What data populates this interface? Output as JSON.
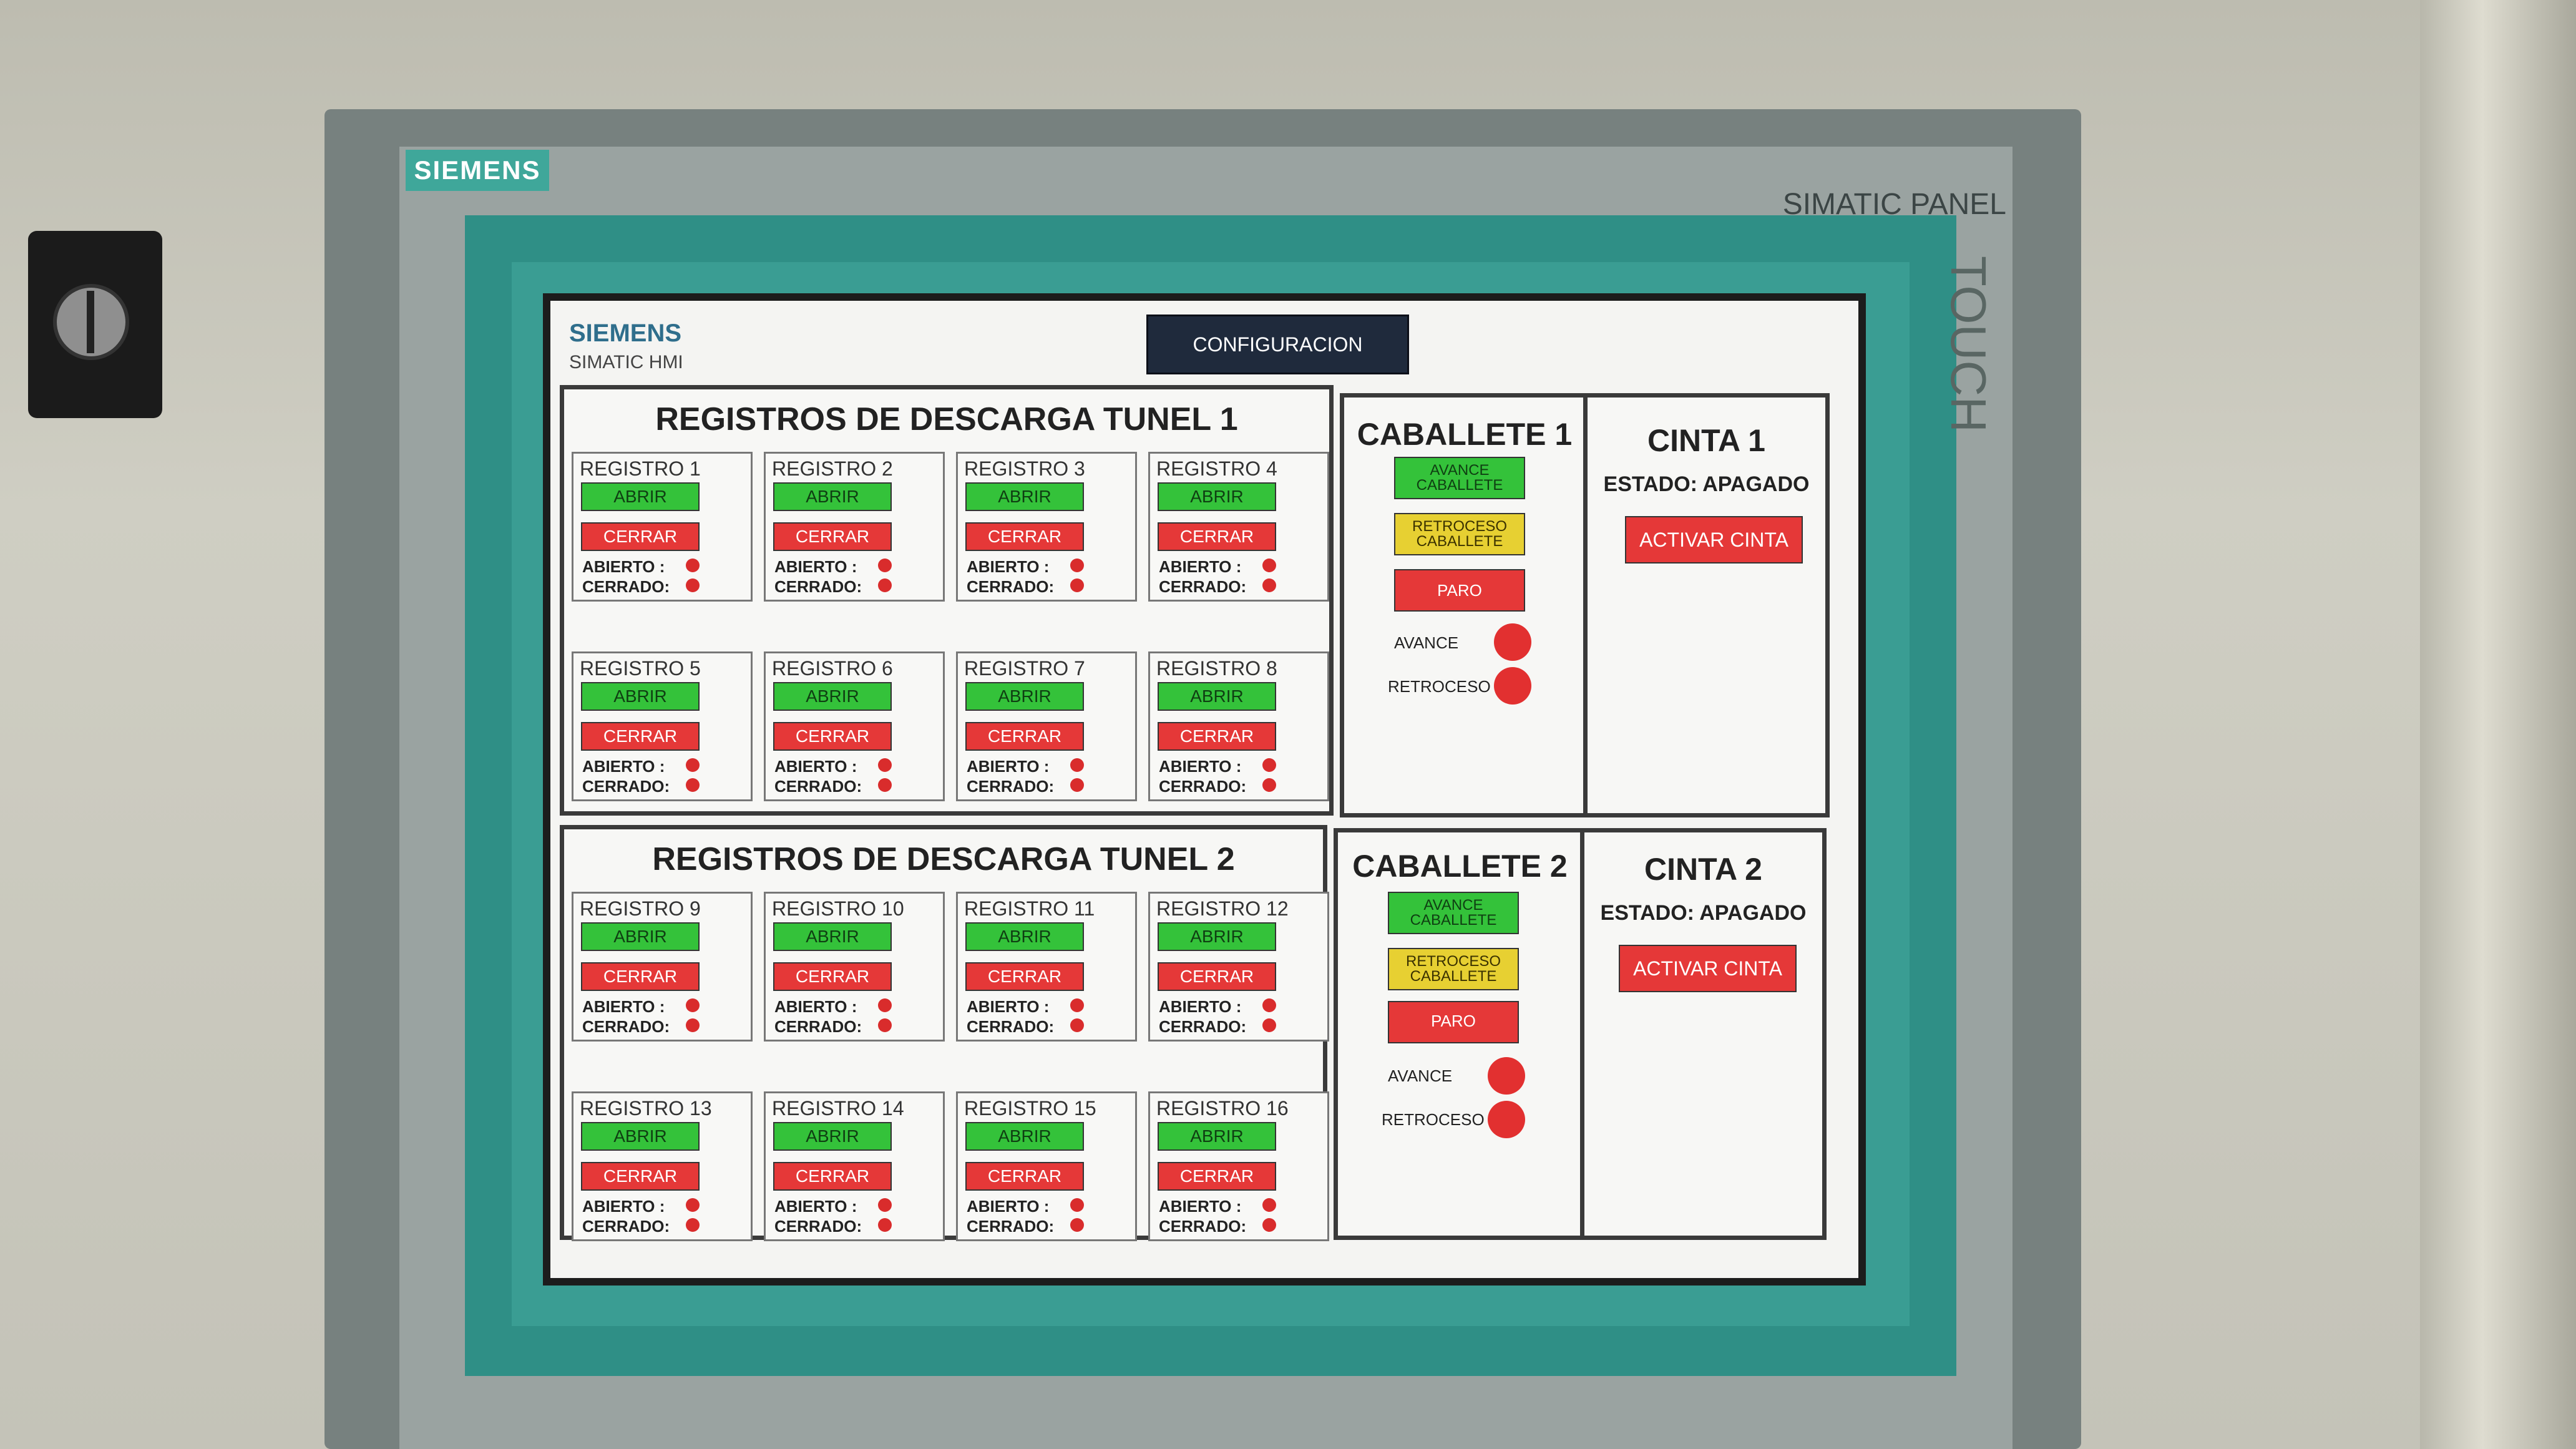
{
  "bezel": {
    "brand": "SIEMENS",
    "model": "SIMATIC PANEL",
    "touch": "TOUCH"
  },
  "header": {
    "brand": "SIEMENS",
    "subtitle": "SIMATIC HMI",
    "config_label": "CONFIGURACION"
  },
  "tunel1": {
    "title": "REGISTROS DE DESCARGA TUNEL 1",
    "registros": [
      {
        "name": "REGISTRO 1",
        "open_label": "ABRIR",
        "close_label": "CERRAR",
        "open_state": "ABIERTO :",
        "closed_state": "CERRADO:"
      },
      {
        "name": "REGISTRO 2",
        "open_label": "ABRIR",
        "close_label": "CERRAR",
        "open_state": "ABIERTO :",
        "closed_state": "CERRADO:"
      },
      {
        "name": "REGISTRO 3",
        "open_label": "ABRIR",
        "close_label": "CERRAR",
        "open_state": "ABIERTO :",
        "closed_state": "CERRADO:"
      },
      {
        "name": "REGISTRO 4",
        "open_label": "ABRIR",
        "close_label": "CERRAR",
        "open_state": "ABIERTO :",
        "closed_state": "CERRADO:"
      },
      {
        "name": "REGISTRO 5",
        "open_label": "ABRIR",
        "close_label": "CERRAR",
        "open_state": "ABIERTO :",
        "closed_state": "CERRADO:"
      },
      {
        "name": "REGISTRO 6",
        "open_label": "ABRIR",
        "close_label": "CERRAR",
        "open_state": "ABIERTO :",
        "closed_state": "CERRADO:"
      },
      {
        "name": "REGISTRO 7",
        "open_label": "ABRIR",
        "close_label": "CERRAR",
        "open_state": "ABIERTO :",
        "closed_state": "CERRADO:"
      },
      {
        "name": "REGISTRO 8",
        "open_label": "ABRIR",
        "close_label": "CERRAR",
        "open_state": "ABIERTO :",
        "closed_state": "CERRADO:"
      }
    ]
  },
  "tunel2": {
    "title": "REGISTROS DE DESCARGA TUNEL 2",
    "registros": [
      {
        "name": "REGISTRO 9",
        "open_label": "ABRIR",
        "close_label": "CERRAR",
        "open_state": "ABIERTO :",
        "closed_state": "CERRADO:"
      },
      {
        "name": "REGISTRO 10",
        "open_label": "ABRIR",
        "close_label": "CERRAR",
        "open_state": "ABIERTO :",
        "closed_state": "CERRADO:"
      },
      {
        "name": "REGISTRO 11",
        "open_label": "ABRIR",
        "close_label": "CERRAR",
        "open_state": "ABIERTO :",
        "closed_state": "CERRADO:"
      },
      {
        "name": "REGISTRO 12",
        "open_label": "ABRIR",
        "close_label": "CERRAR",
        "open_state": "ABIERTO :",
        "closed_state": "CERRADO:"
      },
      {
        "name": "REGISTRO 13",
        "open_label": "ABRIR",
        "close_label": "CERRAR",
        "open_state": "ABIERTO :",
        "closed_state": "CERRADO:"
      },
      {
        "name": "REGISTRO 14",
        "open_label": "ABRIR",
        "close_label": "CERRAR",
        "open_state": "ABIERTO :",
        "closed_state": "CERRADO:"
      },
      {
        "name": "REGISTRO 15",
        "open_label": "ABRIR",
        "close_label": "CERRAR",
        "open_state": "ABIERTO :",
        "closed_state": "CERRADO:"
      },
      {
        "name": "REGISTRO 16",
        "open_label": "ABRIR",
        "close_label": "CERRAR",
        "open_state": "ABIERTO :",
        "closed_state": "CERRADO:"
      }
    ]
  },
  "caballete1": {
    "title": "CABALLETE 1",
    "avance_line1": "AVANCE",
    "avance_line2": "CABALLETE",
    "retroceso_line1": "RETROCESO",
    "retroceso_line2": "CABALLETE",
    "paro_label": "PARO",
    "ind_avance": "AVANCE",
    "ind_retroceso": "RETROCESO"
  },
  "caballete2": {
    "title": "CABALLETE 2",
    "avance_line1": "AVANCE",
    "avance_line2": "CABALLETE",
    "retroceso_line1": "RETROCESO",
    "retroceso_line2": "CABALLETE",
    "paro_label": "PARO",
    "ind_avance": "AVANCE",
    "ind_retroceso": "RETROCESO"
  },
  "cinta1": {
    "title": "CINTA 1",
    "estado": "ESTADO: APAGADO",
    "activate_label": "ACTIVAR CINTA"
  },
  "cinta2": {
    "title": "CINTA 2",
    "estado": "ESTADO: APAGADO",
    "activate_label": "ACTIVAR CINTA"
  },
  "colors": {
    "open_green": "#34c23a",
    "close_red": "#e53838",
    "retroceso_yellow": "#e7d032",
    "indicator_red": "#d92c2c",
    "bezel_teal": "#2f8f86"
  }
}
